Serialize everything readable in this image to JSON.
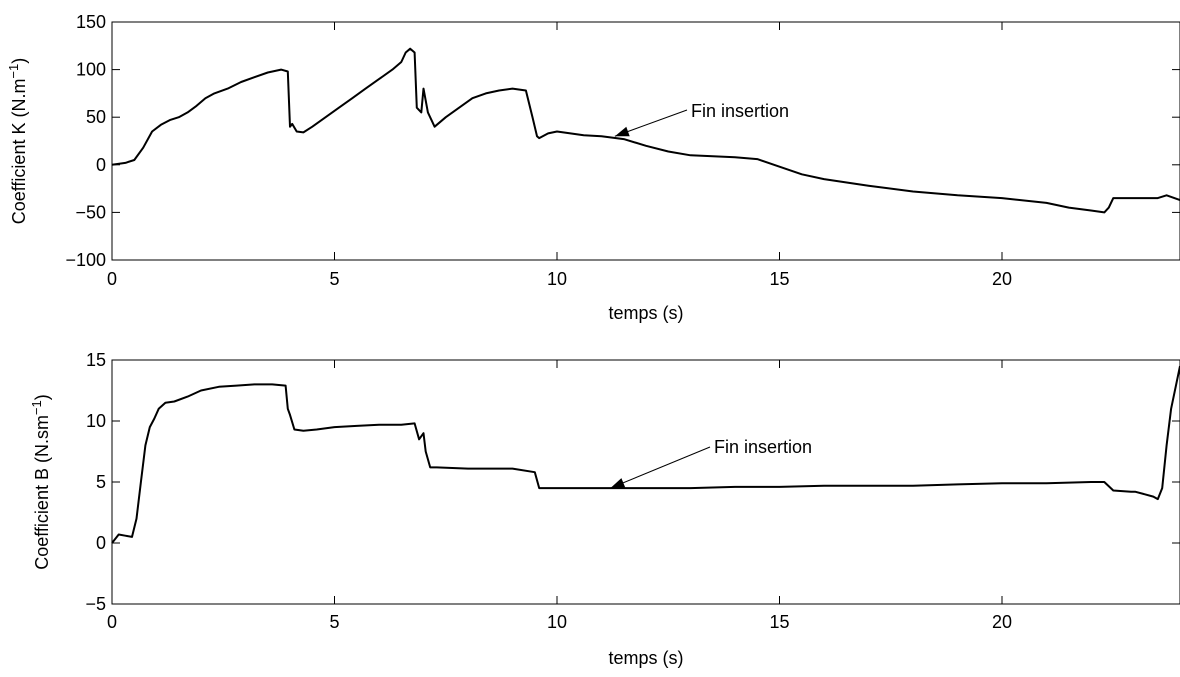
{
  "chart_data": [
    {
      "type": "line",
      "xlabel": "temps (s)",
      "ylabel": "Coefficient K (N.m",
      "ylabel_sup": "−1",
      "ylabel_close": ")",
      "xlim": [
        0,
        24
      ],
      "ylim": [
        -100,
        150
      ],
      "xticks": [
        0,
        5,
        10,
        15,
        20
      ],
      "yticks": [
        -100,
        -50,
        0,
        50,
        100,
        150
      ],
      "ytick_labels": [
        "−100",
        "−50",
        "0",
        "50",
        "100",
        "150"
      ],
      "grid": false,
      "annotation": {
        "text": "Fin insertion",
        "x": 11.3,
        "y": 30
      },
      "series": [
        {
          "color": "#000000",
          "x": [
            0,
            0.3,
            0.5,
            0.7,
            0.9,
            1.1,
            1.3,
            1.5,
            1.7,
            1.9,
            2.1,
            2.3,
            2.6,
            2.9,
            3.2,
            3.5,
            3.8,
            3.95,
            4.0,
            4.05,
            4.15,
            4.3,
            4.5,
            4.8,
            5.1,
            5.4,
            5.7,
            6.0,
            6.3,
            6.5,
            6.6,
            6.7,
            6.8,
            6.85,
            6.95,
            7.0,
            7.1,
            7.25,
            7.5,
            7.8,
            8.1,
            8.4,
            8.7,
            9.0,
            9.3,
            9.45,
            9.55,
            9.6,
            9.8,
            10.0,
            10.3,
            10.6,
            11.0,
            11.5,
            12.0,
            12.5,
            13.0,
            13.5,
            14.0,
            14.5,
            15.0,
            15.5,
            16.0,
            17.0,
            18.0,
            19.0,
            20.0,
            21.0,
            21.5,
            22.0,
            22.3,
            22.4,
            22.5,
            23.0,
            23.5,
            23.7,
            24.0
          ],
          "y": [
            0,
            2,
            5,
            18,
            35,
            42,
            47,
            50,
            55,
            62,
            70,
            75,
            80,
            87,
            92,
            97,
            100,
            98,
            40,
            43,
            35,
            34,
            40,
            50,
            60,
            70,
            80,
            90,
            100,
            108,
            118,
            122,
            118,
            60,
            55,
            80,
            55,
            40,
            50,
            60,
            70,
            75,
            78,
            80,
            78,
            50,
            30,
            28,
            33,
            35,
            33,
            31,
            30,
            27,
            20,
            14,
            10,
            9,
            8,
            6,
            -2,
            -10,
            -15,
            -22,
            -28,
            -32,
            -35,
            -40,
            -45,
            -48,
            -50,
            -45,
            -35,
            -35,
            -35,
            -32,
            -37
          ]
        }
      ]
    },
    {
      "type": "line",
      "xlabel": "temps (s)",
      "ylabel": "Coefficient B (N.sm",
      "ylabel_sup": "−1",
      "ylabel_close": ")",
      "xlim": [
        0,
        24
      ],
      "ylim": [
        -5,
        15
      ],
      "xticks": [
        0,
        5,
        10,
        15,
        20
      ],
      "yticks": [
        -5,
        0,
        5,
        10,
        15
      ],
      "ytick_labels": [
        "−5",
        "0",
        "5",
        "10",
        "15"
      ],
      "grid": false,
      "annotation": {
        "text": "Fin insertion",
        "x": 11.2,
        "y": 4.5
      },
      "series": [
        {
          "color": "#000000",
          "x": [
            0,
            0.15,
            0.3,
            0.45,
            0.55,
            0.65,
            0.75,
            0.85,
            0.95,
            1.05,
            1.2,
            1.4,
            1.7,
            2.0,
            2.4,
            2.8,
            3.2,
            3.6,
            3.9,
            3.95,
            4.0,
            4.1,
            4.3,
            4.6,
            5.0,
            5.5,
            6.0,
            6.5,
            6.8,
            6.9,
            7.0,
            7.05,
            7.15,
            7.3,
            8.0,
            9.0,
            9.5,
            9.6,
            10.0,
            11.0,
            12.0,
            13.0,
            14.0,
            15.0,
            16.0,
            17.0,
            18.0,
            19.0,
            20.0,
            21.0,
            22.0,
            22.3,
            22.5,
            22.9,
            23.0,
            23.2,
            23.4,
            23.5,
            23.6,
            23.7,
            23.8,
            24.0
          ],
          "y": [
            0,
            0.7,
            0.6,
            0.5,
            2,
            5,
            8,
            9.5,
            10.2,
            11,
            11.5,
            11.6,
            12,
            12.5,
            12.8,
            12.9,
            13,
            13,
            12.9,
            11,
            10.5,
            9.3,
            9.2,
            9.3,
            9.5,
            9.6,
            9.7,
            9.7,
            9.8,
            8.5,
            9,
            7.5,
            6.2,
            6.2,
            6.1,
            6.1,
            5.8,
            4.5,
            4.5,
            4.5,
            4.5,
            4.5,
            4.6,
            4.6,
            4.7,
            4.7,
            4.7,
            4.8,
            4.9,
            4.9,
            5.0,
            5.0,
            4.3,
            4.2,
            4.2,
            4.0,
            3.8,
            3.6,
            4.5,
            8,
            11,
            14.5
          ]
        }
      ]
    }
  ]
}
